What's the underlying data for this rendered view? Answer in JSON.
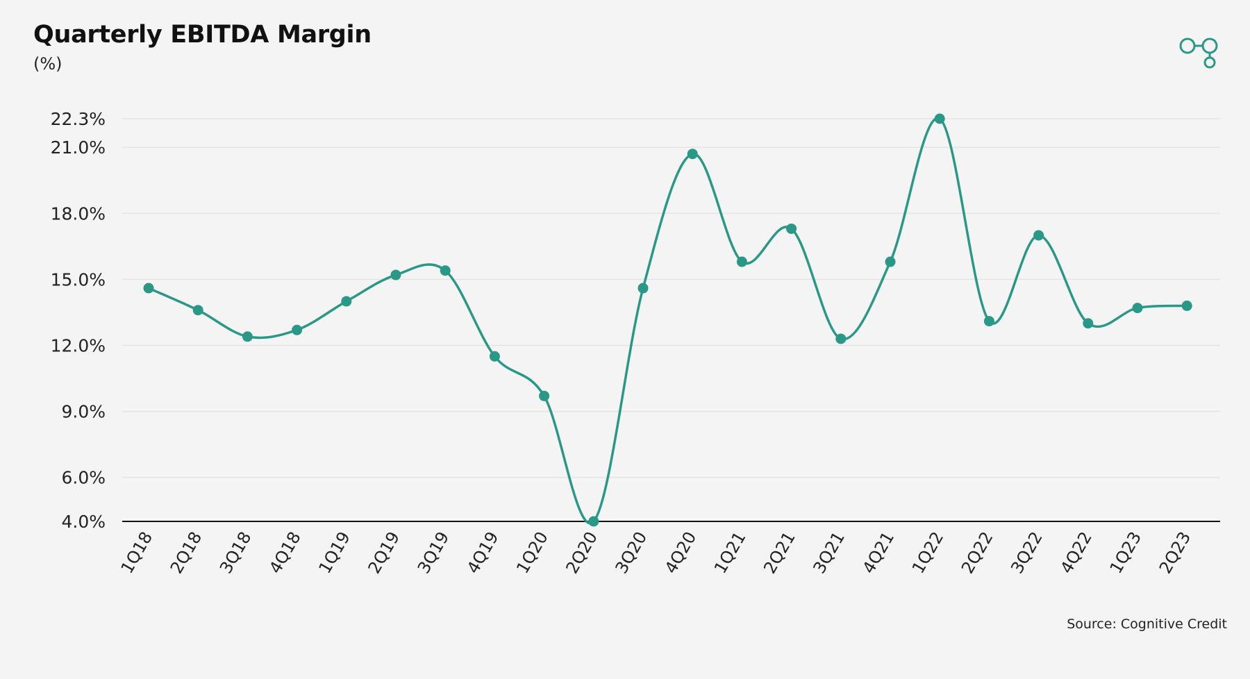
{
  "title": "Quarterly EBITDA Margin",
  "subtitle": "(%)",
  "source": "Source: Cognitive Credit",
  "colors": {
    "line": "#2a9886",
    "grid": "#e4e4e4",
    "axis": "#111111",
    "background": "#f4f4f4"
  },
  "logo_icon": "link-nodes-icon",
  "chart_data": {
    "type": "line",
    "title": "Quarterly EBITDA Margin",
    "ylabel": "(%)",
    "xlabel": "",
    "categories": [
      "1Q18",
      "2Q18",
      "3Q18",
      "4Q18",
      "1Q19",
      "2Q19",
      "3Q19",
      "4Q19",
      "1Q20",
      "2Q20",
      "3Q20",
      "4Q20",
      "1Q21",
      "2Q21",
      "3Q21",
      "4Q21",
      "1Q22",
      "2Q22",
      "3Q22",
      "4Q22",
      "1Q23",
      "2Q23"
    ],
    "series": [
      {
        "values": [
          14.6,
          13.6,
          12.4,
          12.7,
          14.0,
          15.2,
          15.4,
          11.5,
          9.7,
          4.0,
          14.6,
          20.7,
          15.8,
          17.3,
          12.3,
          15.8,
          22.3,
          13.1,
          17.0,
          13.0,
          13.7,
          13.8
        ]
      }
    ],
    "yticks": [
      4.0,
      6.0,
      9.0,
      12.0,
      15.0,
      18.0,
      21.0,
      22.3
    ],
    "ytick_labels": [
      "4.0%",
      "6.0%",
      "9.0%",
      "12.0%",
      "15.0%",
      "18.0%",
      "21.0%",
      "22.3%"
    ],
    "ylim": [
      4.0,
      22.3
    ],
    "grid": true,
    "legend": "none"
  }
}
